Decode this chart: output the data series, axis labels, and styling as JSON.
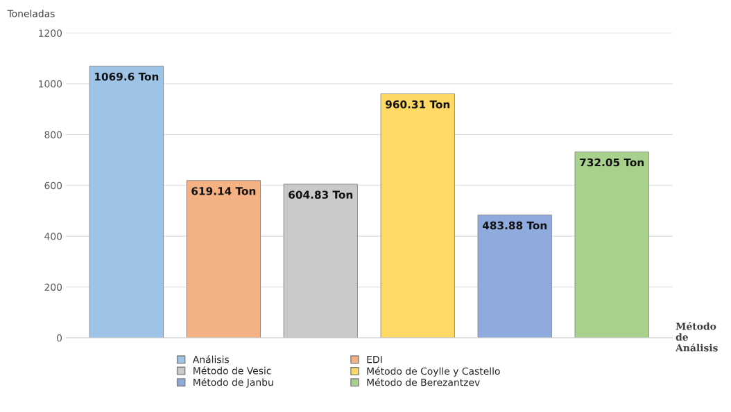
{
  "chart_data": {
    "type": "bar",
    "ylabel": "Toneladas",
    "xlabel": "Método de Análisis",
    "categories": [
      null
    ],
    "series": [
      {
        "name": "Análisis",
        "color": "#9dc3e6",
        "values": [
          1069.6
        ],
        "value_labels": [
          "1069.6 Ton"
        ]
      },
      {
        "name": "EDI",
        "color": "#f4b183",
        "values": [
          619.14
        ],
        "value_labels": [
          "619.14 Ton"
        ]
      },
      {
        "name": "Método de Vesic",
        "color": "#c9c9c9",
        "values": [
          604.83
        ],
        "value_labels": [
          "604.83 Ton"
        ]
      },
      {
        "name": "Método de Coylle y Castello",
        "color": "#ffd966",
        "values": [
          960.31
        ],
        "value_labels": [
          "960.31 Ton"
        ]
      },
      {
        "name": "Método de Janbu",
        "color": "#8faadc",
        "values": [
          483.88
        ],
        "value_labels": [
          "483.88 Ton"
        ]
      },
      {
        "name": "Método de Berezantzev",
        "color": "#a9d18e",
        "values": [
          732.05
        ],
        "value_labels": [
          "732.05 Ton"
        ]
      }
    ],
    "ylim": [
      0,
      1200
    ],
    "yticks": [
      0,
      200,
      400,
      600,
      800,
      1000,
      1200
    ],
    "grid": "y",
    "legend": "bottom"
  }
}
